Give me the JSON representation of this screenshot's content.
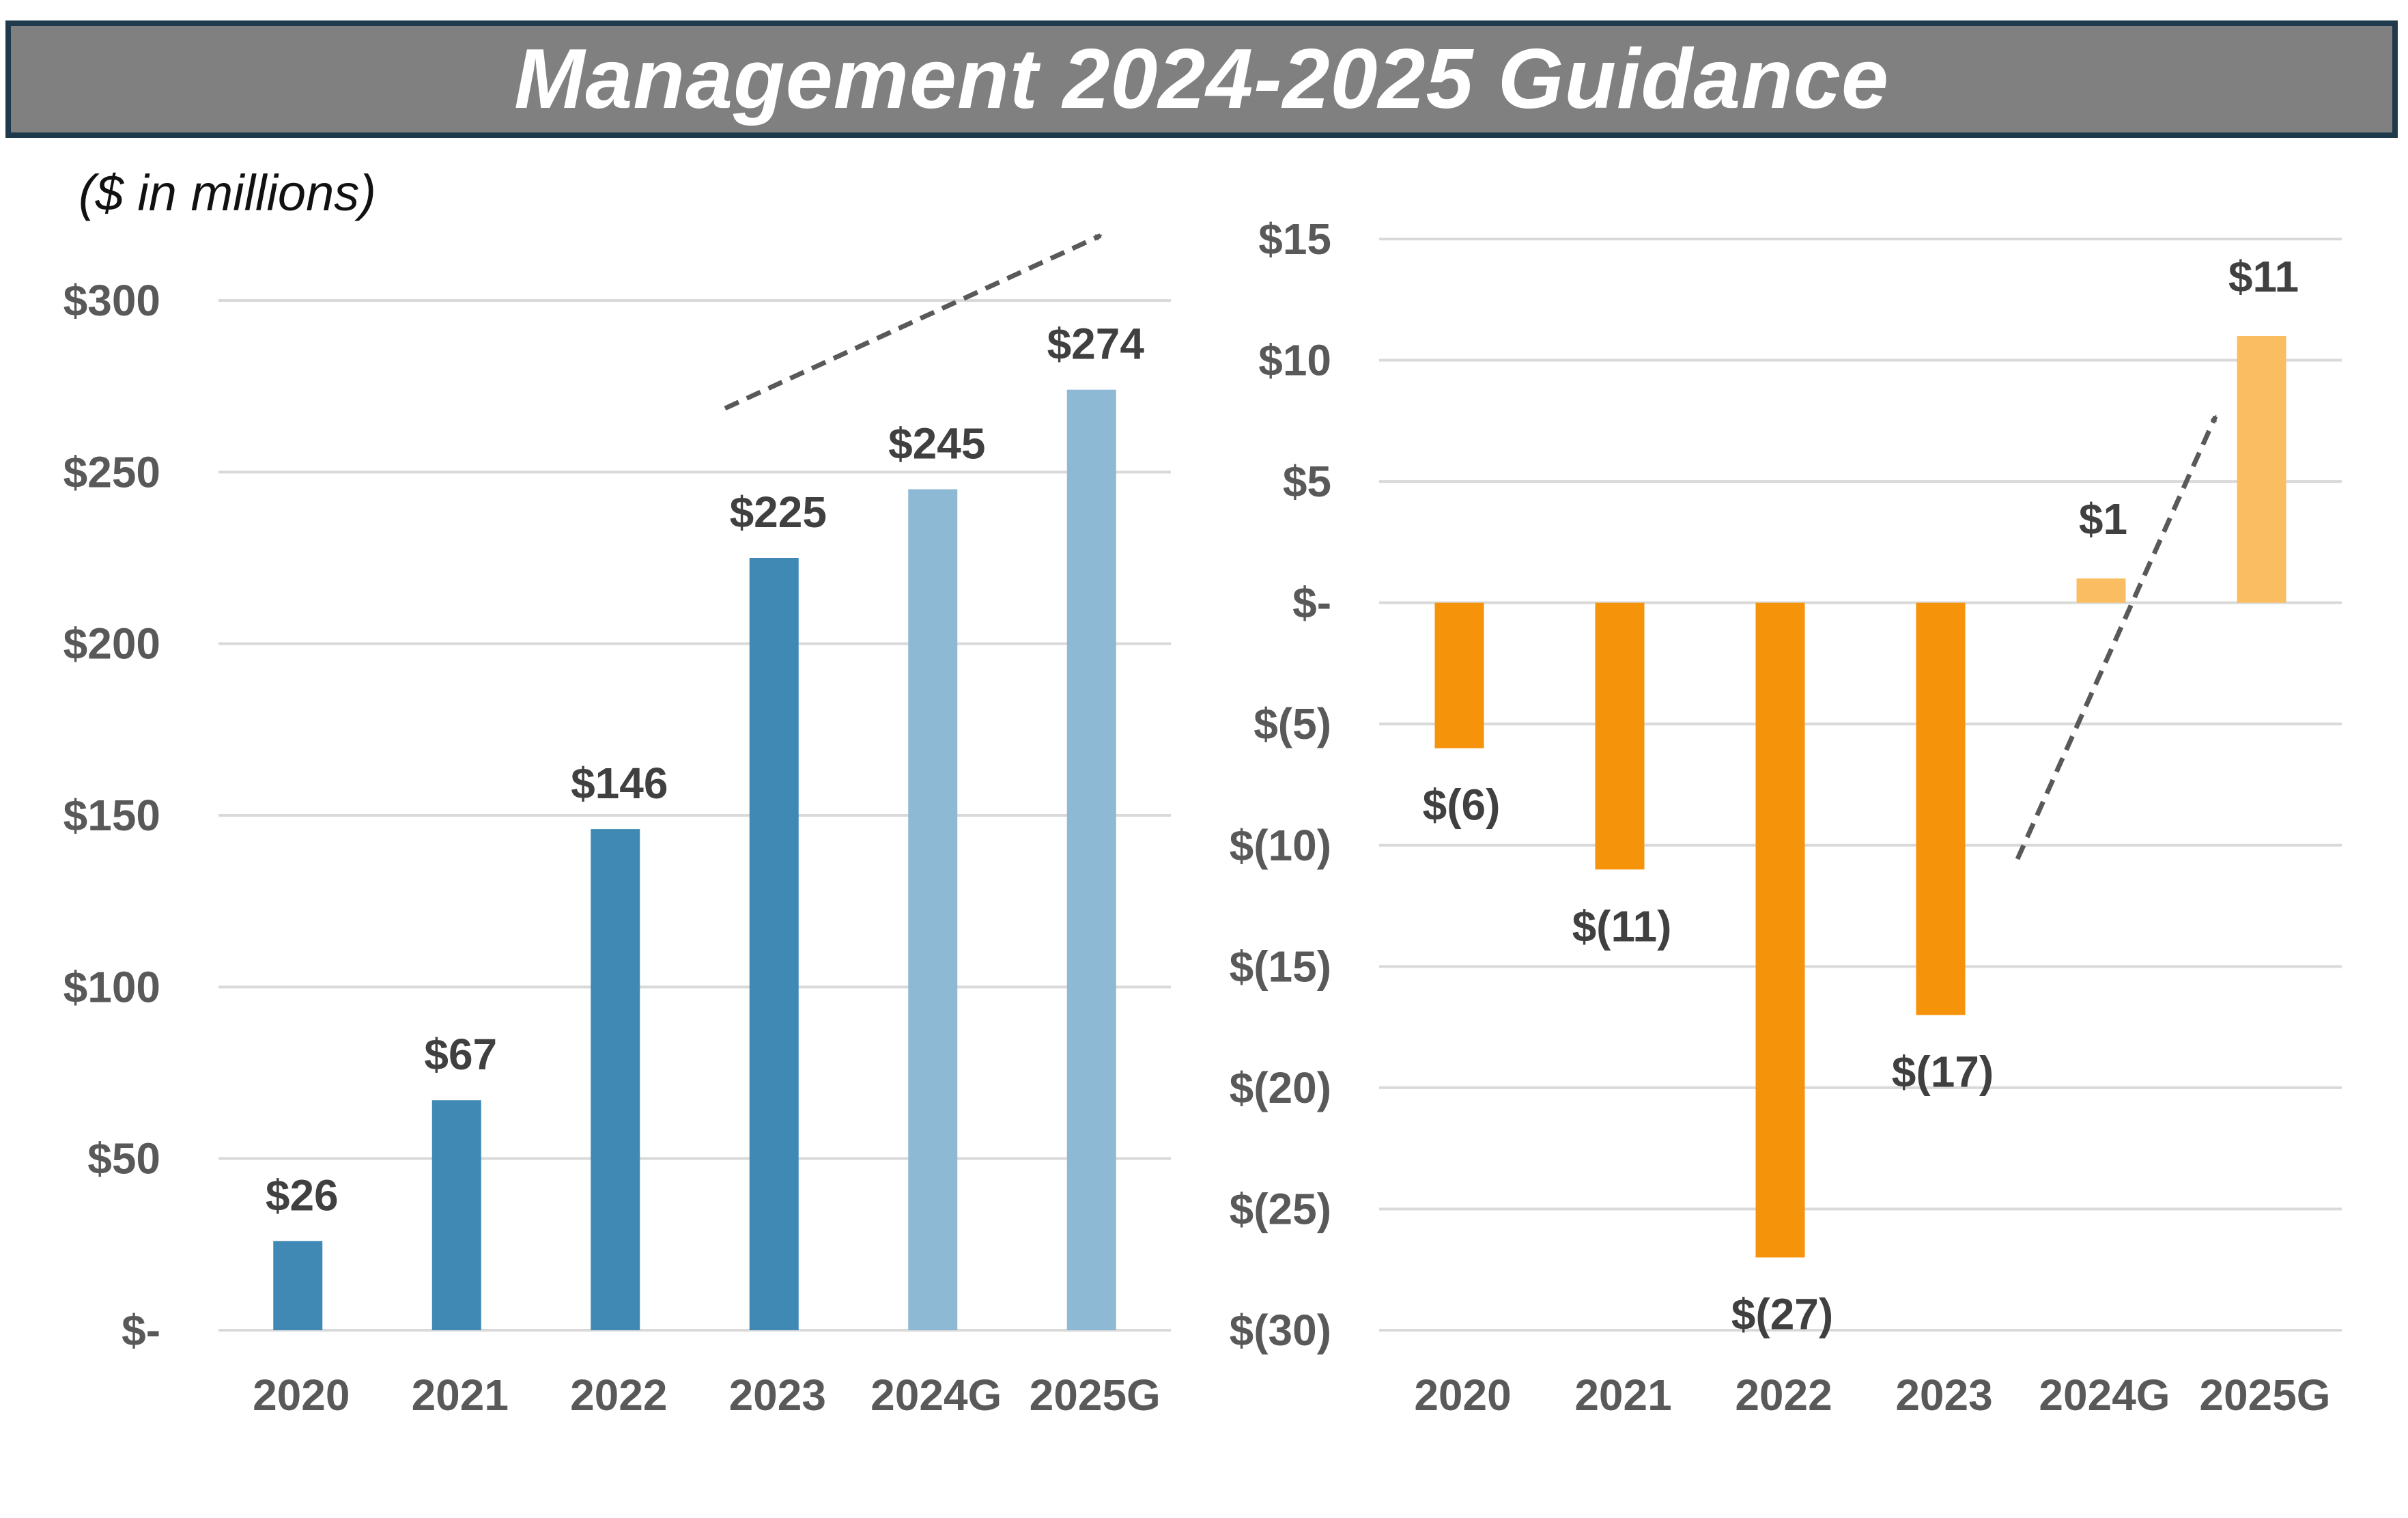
{
  "title": "Management 2024-2025 Guidance",
  "units_note": "($ in millions)",
  "colors": {
    "banner_bg": "#808080",
    "banner_border": "#1f3a4d",
    "blue_actual": "#4189b5",
    "blue_guidance": "#8db9d5",
    "orange_actual": "#f5930a",
    "orange_guidance": "#fbbd61",
    "gridline": "#d9d9d9",
    "arrow": "#595959"
  },
  "chart_data": [
    {
      "type": "bar",
      "categories": [
        "2020",
        "2021",
        "2022",
        "2023",
        "2024G",
        "2025G"
      ],
      "values": [
        26,
        67,
        146,
        225,
        245,
        274
      ],
      "data_labels": [
        "$26",
        "$67",
        "$146",
        "$225",
        "$245",
        "$274"
      ],
      "guidance": [
        false,
        false,
        false,
        false,
        true,
        true
      ],
      "ylim": [
        0,
        300
      ],
      "yticks": [
        0,
        50,
        100,
        150,
        200,
        250,
        300
      ],
      "ytick_labels": [
        "$-",
        "$50",
        "$100",
        "$150",
        "$200",
        "$250",
        "$300"
      ],
      "grid": true,
      "legend": "none",
      "trend_arrow": true
    },
    {
      "type": "bar",
      "categories": [
        "2020",
        "2021",
        "2022",
        "2023",
        "2024G",
        "2025G"
      ],
      "values": [
        -6,
        -11,
        -27,
        -17,
        1,
        11
      ],
      "data_labels": [
        "$(6)",
        "$(11)",
        "$(27)",
        "$(17)",
        "$1",
        "$11"
      ],
      "guidance": [
        false,
        false,
        false,
        false,
        true,
        true
      ],
      "ylim": [
        -30,
        15
      ],
      "yticks": [
        15,
        10,
        5,
        0,
        -5,
        -10,
        -15,
        -20,
        -25,
        -30
      ],
      "ytick_labels": [
        "$15",
        "$10",
        "$5",
        "$-",
        "$(5)",
        "$(10)",
        "$(15)",
        "$(20)",
        "$(25)",
        "$(30)"
      ],
      "grid": true,
      "legend": "none",
      "trend_arrow": true
    }
  ]
}
